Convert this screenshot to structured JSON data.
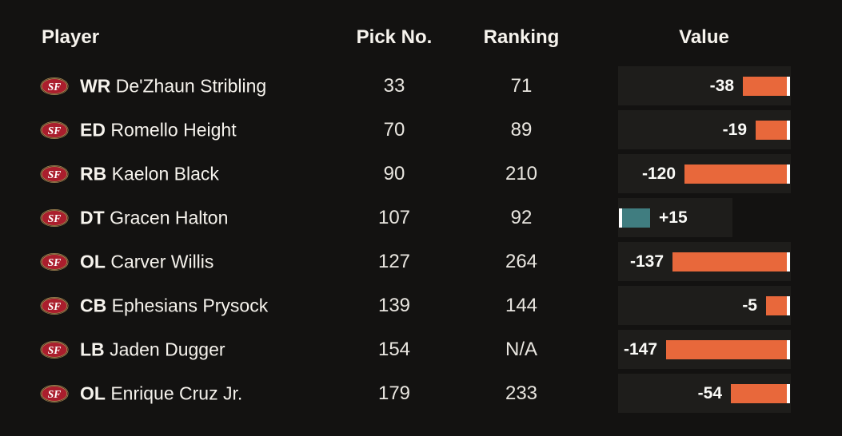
{
  "chart_data": {
    "type": "table",
    "team_logo_text": "SF",
    "columns": [
      "Player",
      "Pick No.",
      "Ranking",
      "Value"
    ],
    "rows": [
      {
        "position": "WR",
        "player": "De'Zhaun Stribling",
        "pick": "33",
        "ranking": "71",
        "value": -38,
        "value_label": "-38"
      },
      {
        "position": "ED",
        "player": "Romello Height",
        "pick": "70",
        "ranking": "89",
        "value": -19,
        "value_label": "-19"
      },
      {
        "position": "RB",
        "player": "Kaelon Black",
        "pick": "90",
        "ranking": "210",
        "value": -120,
        "value_label": "-120"
      },
      {
        "position": "DT",
        "player": "Gracen Halton",
        "pick": "107",
        "ranking": "92",
        "value": 15,
        "value_label": "+15"
      },
      {
        "position": "OL",
        "player": "Carver Willis",
        "pick": "127",
        "ranking": "264",
        "value": -137,
        "value_label": "-137"
      },
      {
        "position": "CB",
        "player": "Ephesians Prysock",
        "pick": "139",
        "ranking": "144",
        "value": -5,
        "value_label": "-5"
      },
      {
        "position": "LB",
        "player": "Jaden Dugger",
        "pick": "154",
        "ranking": "N/A",
        "value": -147,
        "value_label": "-147"
      },
      {
        "position": "OL",
        "player": "Enrique Cruz Jr.",
        "pick": "179",
        "ranking": "233",
        "value": -54,
        "value_label": "-54"
      }
    ],
    "layout_hints": {
      "grid": "off",
      "negative_bars": "anchored at right baseline tick, extend left",
      "positive_bars": "anchored at left baseline tick, extend right"
    }
  },
  "colors": {
    "background": "#131211",
    "cell_background": "#1e1d1b",
    "negative_bar": "#e8683b",
    "positive_bar": "#407d80",
    "baseline_tick": "#ffffff",
    "text": "#f6f3ed",
    "logo_red": "#aa1e2d",
    "logo_gold": "#b3995d"
  }
}
